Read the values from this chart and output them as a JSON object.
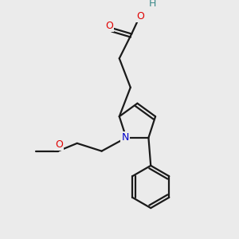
{
  "bg_color": "#ebebeb",
  "bond_color": "#1a1a1a",
  "atom_colors": {
    "O": "#e00000",
    "N": "#0000cc",
    "H": "#3a8888",
    "C": "#1a1a1a"
  },
  "figsize": [
    3.0,
    3.0
  ],
  "dpi": 100
}
